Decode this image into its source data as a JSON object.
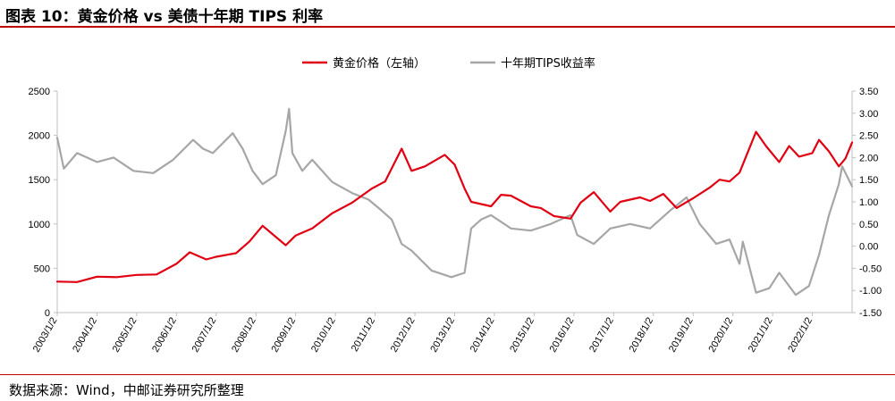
{
  "header": {
    "title": "图表 10：黄金价格 vs 美债十年期 TIPS 利率"
  },
  "footer": {
    "source": "数据来源：Wind，中邮证券研究所整理"
  },
  "colors": {
    "gold": "#e00012",
    "tips": "#a6a6a6",
    "rule": "#c00000",
    "axis": "#bfbfbf"
  },
  "chart_data": {
    "type": "line",
    "title": "",
    "legend": {
      "position": "top",
      "items": [
        "黄金价格（左轴）",
        "十年期TIPS收益率"
      ]
    },
    "x_axis": {
      "tick_labels": [
        "2003/1/2",
        "2004/1/2",
        "2005/1/2",
        "2006/1/2",
        "2007/1/2",
        "2008/1/2",
        "2009/1/2",
        "2010/1/2",
        "2011/1/2",
        "2012/1/2",
        "2013/1/2",
        "2014/1/2",
        "2015/1/2",
        "2016/1/2",
        "2017/1/2",
        "2018/1/2",
        "2019/1/2",
        "2020/1/2",
        "2021/1/2",
        "2022/1/2"
      ],
      "range": [
        "2003-01-02",
        "2023-01-31"
      ]
    },
    "y_left": {
      "range": [
        0,
        2500
      ],
      "ticks": [
        "0",
        "500",
        "1000",
        "1500",
        "2000",
        "2500"
      ]
    },
    "y_right": {
      "range": [
        -1.5,
        3.5
      ],
      "ticks": [
        "-1.50",
        "-1.00",
        "-0.50",
        "0.00",
        "0.50",
        "1.00",
        "1.50",
        "2.00",
        "2.50",
        "3.00",
        "3.50"
      ]
    },
    "grid": false,
    "series": [
      {
        "name": "黄金价格（左轴）",
        "axis": "left",
        "color": "#e00012",
        "x": [
          "2003-01",
          "2003-07",
          "2004-01",
          "2004-07",
          "2005-01",
          "2005-07",
          "2006-01",
          "2006-05",
          "2006-10",
          "2007-01",
          "2007-07",
          "2007-11",
          "2008-03",
          "2008-10",
          "2009-01",
          "2009-06",
          "2009-12",
          "2010-06",
          "2010-12",
          "2011-04",
          "2011-09",
          "2011-12",
          "2012-04",
          "2012-10",
          "2013-01",
          "2013-04",
          "2013-06",
          "2013-12",
          "2014-03",
          "2014-06",
          "2014-12",
          "2015-03",
          "2015-07",
          "2015-12",
          "2016-03",
          "2016-07",
          "2016-12",
          "2017-03",
          "2017-09",
          "2017-12",
          "2018-04",
          "2018-08",
          "2019-01",
          "2019-06",
          "2019-09",
          "2019-12",
          "2020-03",
          "2020-08",
          "2020-11",
          "2021-03",
          "2021-06",
          "2021-09",
          "2022-01",
          "2022-03",
          "2022-06",
          "2022-09",
          "2022-11",
          "2023-01"
        ],
        "values": [
          350,
          345,
          405,
          400,
          425,
          430,
          550,
          680,
          600,
          630,
          670,
          800,
          980,
          760,
          870,
          950,
          1120,
          1240,
          1400,
          1480,
          1850,
          1600,
          1650,
          1780,
          1670,
          1400,
          1250,
          1200,
          1330,
          1320,
          1200,
          1180,
          1090,
          1060,
          1240,
          1360,
          1140,
          1250,
          1300,
          1260,
          1340,
          1180,
          1290,
          1410,
          1500,
          1480,
          1580,
          2040,
          1880,
          1700,
          1880,
          1760,
          1800,
          1950,
          1820,
          1650,
          1740,
          1920
        ]
      },
      {
        "name": "十年期TIPS收益率",
        "axis": "right",
        "color": "#a6a6a6",
        "x": [
          "2003-01",
          "2003-03",
          "2003-07",
          "2003-10",
          "2004-01",
          "2004-06",
          "2004-12",
          "2005-06",
          "2005-12",
          "2006-06",
          "2006-09",
          "2006-12",
          "2007-06",
          "2007-09",
          "2007-12",
          "2008-03",
          "2008-07",
          "2008-10",
          "2008-11",
          "2008-12",
          "2009-03",
          "2009-06",
          "2009-12",
          "2010-06",
          "2010-11",
          "2011-03",
          "2011-06",
          "2011-09",
          "2011-12",
          "2012-06",
          "2012-12",
          "2013-04",
          "2013-06",
          "2013-09",
          "2013-12",
          "2014-06",
          "2014-12",
          "2015-06",
          "2015-12",
          "2016-02",
          "2016-07",
          "2016-12",
          "2017-06",
          "2017-12",
          "2018-06",
          "2018-11",
          "2019-03",
          "2019-08",
          "2019-12",
          "2020-03",
          "2020-04",
          "2020-08",
          "2020-12",
          "2021-03",
          "2021-08",
          "2021-12",
          "2022-03",
          "2022-06",
          "2022-09",
          "2022-10",
          "2023-01"
        ],
        "values": [
          2.45,
          1.75,
          2.1,
          2.0,
          1.9,
          2.0,
          1.7,
          1.65,
          1.95,
          2.4,
          2.2,
          2.1,
          2.55,
          2.2,
          1.7,
          1.4,
          1.6,
          2.6,
          3.1,
          2.1,
          1.7,
          1.95,
          1.45,
          1.2,
          1.05,
          0.8,
          0.6,
          0.05,
          -0.1,
          -0.55,
          -0.7,
          -0.6,
          0.4,
          0.6,
          0.7,
          0.4,
          0.35,
          0.5,
          0.7,
          0.25,
          0.05,
          0.4,
          0.5,
          0.4,
          0.8,
          1.1,
          0.5,
          0.05,
          0.15,
          -0.4,
          0.1,
          -1.05,
          -0.95,
          -0.6,
          -1.1,
          -0.9,
          -0.2,
          0.7,
          1.4,
          1.8,
          1.35
        ]
      }
    ]
  }
}
